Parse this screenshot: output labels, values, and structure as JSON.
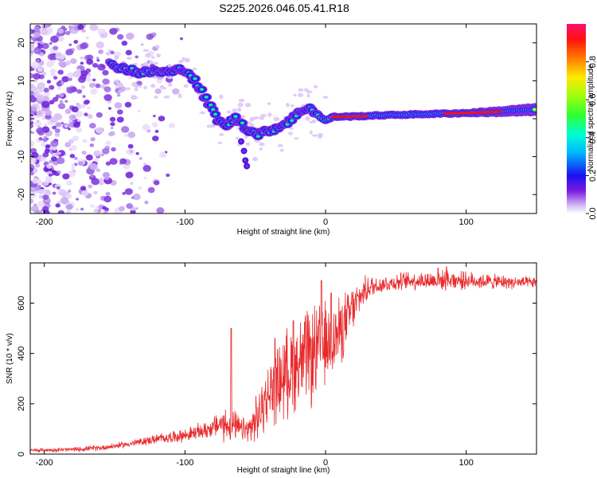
{
  "title": "S225.2026.046.05.41.R18",
  "chart_data": [
    {
      "type": "heatmap",
      "name": "spectrogram",
      "xlabel": "Height of straight line (km)",
      "ylabel": "Frequency (Hz)",
      "xlim": [
        -210,
        150
      ],
      "ylim": [
        -25,
        25
      ],
      "xticks": [
        -200,
        -100,
        0,
        100
      ],
      "yticks": [
        -20,
        -10,
        0,
        10,
        20
      ],
      "ridge": [
        [
          -150,
          14
        ],
        [
          -145,
          13.5
        ],
        [
          -140,
          13
        ],
        [
          -135,
          12.5
        ],
        [
          -130,
          12
        ],
        [
          -125,
          12.3
        ],
        [
          -120,
          12.5
        ],
        [
          -115,
          12.3
        ],
        [
          -110,
          12.2
        ],
        [
          -105,
          12.8
        ],
        [
          -100,
          13.2
        ],
        [
          -96,
          11.5
        ],
        [
          -92,
          9.5
        ],
        [
          -88,
          7
        ],
        [
          -84,
          4.5
        ],
        [
          -80,
          2
        ],
        [
          -76,
          -0.5
        ],
        [
          -72,
          -2
        ],
        [
          -68,
          -1
        ],
        [
          -64,
          0
        ],
        [
          -60,
          -1
        ],
        [
          -56,
          -2.5
        ],
        [
          -52,
          -3.5
        ],
        [
          -48,
          -4
        ],
        [
          -44,
          -3.8
        ],
        [
          -40,
          -3
        ],
        [
          -36,
          -2.5
        ],
        [
          -32,
          -2
        ],
        [
          -28,
          -1
        ],
        [
          -24,
          0
        ],
        [
          -20,
          1
        ],
        [
          -16,
          2.5
        ],
        [
          -12,
          3
        ],
        [
          -8,
          2
        ],
        [
          -4,
          0.5
        ],
        [
          0,
          -0.5
        ],
        [
          5,
          0.5
        ],
        [
          20,
          0.6
        ],
        [
          40,
          0.9
        ],
        [
          60,
          1.1
        ],
        [
          80,
          1.3
        ],
        [
          100,
          1.5
        ],
        [
          120,
          1.8
        ],
        [
          140,
          2.2
        ],
        [
          150,
          2.4
        ]
      ],
      "colorbar": {
        "label": "Normalized spectral amplitude",
        "ticks": [
          0.0,
          0.2,
          0.4,
          0.6,
          0.8
        ],
        "tick_labels": [
          "0.0",
          "0.2",
          "0.4",
          "0.6",
          "0.8"
        ],
        "range": [
          0,
          1
        ]
      }
    },
    {
      "type": "line",
      "name": "snr",
      "xlabel": "Height of straight line (km)",
      "ylabel": "SNR (10 * v/v)",
      "xlim": [
        -210,
        150
      ],
      "ylim": [
        0,
        760
      ],
      "xticks": [
        -200,
        -100,
        0,
        100
      ],
      "yticks": [
        0,
        200,
        400,
        600
      ],
      "color": "#e8292b",
      "envelope": [
        [
          -210,
          15
        ],
        [
          -180,
          18
        ],
        [
          -160,
          25
        ],
        [
          -140,
          40
        ],
        [
          -120,
          60
        ],
        [
          -100,
          75
        ],
        [
          -85,
          95
        ],
        [
          -75,
          120
        ],
        [
          -65,
          110
        ],
        [
          -55,
          90
        ],
        [
          -48,
          150
        ],
        [
          -40,
          240
        ],
        [
          -30,
          310
        ],
        [
          -20,
          360
        ],
        [
          -10,
          390
        ],
        [
          0,
          430
        ],
        [
          8,
          470
        ],
        [
          14,
          520
        ],
        [
          20,
          580
        ],
        [
          25,
          630
        ],
        [
          30,
          660
        ],
        [
          40,
          675
        ],
        [
          60,
          690
        ],
        [
          80,
          690
        ],
        [
          100,
          690
        ],
        [
          120,
          685
        ],
        [
          150,
          680
        ]
      ],
      "noise_amplitude": [
        [
          -210,
          8
        ],
        [
          -140,
          15
        ],
        [
          -100,
          30
        ],
        [
          -80,
          45
        ],
        [
          -70,
          90
        ],
        [
          -60,
          50
        ],
        [
          -48,
          110
        ],
        [
          -30,
          200
        ],
        [
          -10,
          230
        ],
        [
          0,
          200
        ],
        [
          15,
          140
        ],
        [
          25,
          70
        ],
        [
          40,
          40
        ],
        [
          80,
          45
        ],
        [
          100,
          40
        ],
        [
          150,
          25
        ]
      ],
      "spikes": [
        [
          -67,
          500
        ],
        [
          -36,
          460
        ],
        [
          -23,
          530
        ],
        [
          -3,
          690
        ],
        [
          4,
          640
        ],
        [
          19,
          630
        ],
        [
          80,
          740
        ],
        [
          86,
          745
        ],
        [
          90,
          710
        ],
        [
          98,
          725
        ]
      ],
      "samples": 1500
    }
  ]
}
